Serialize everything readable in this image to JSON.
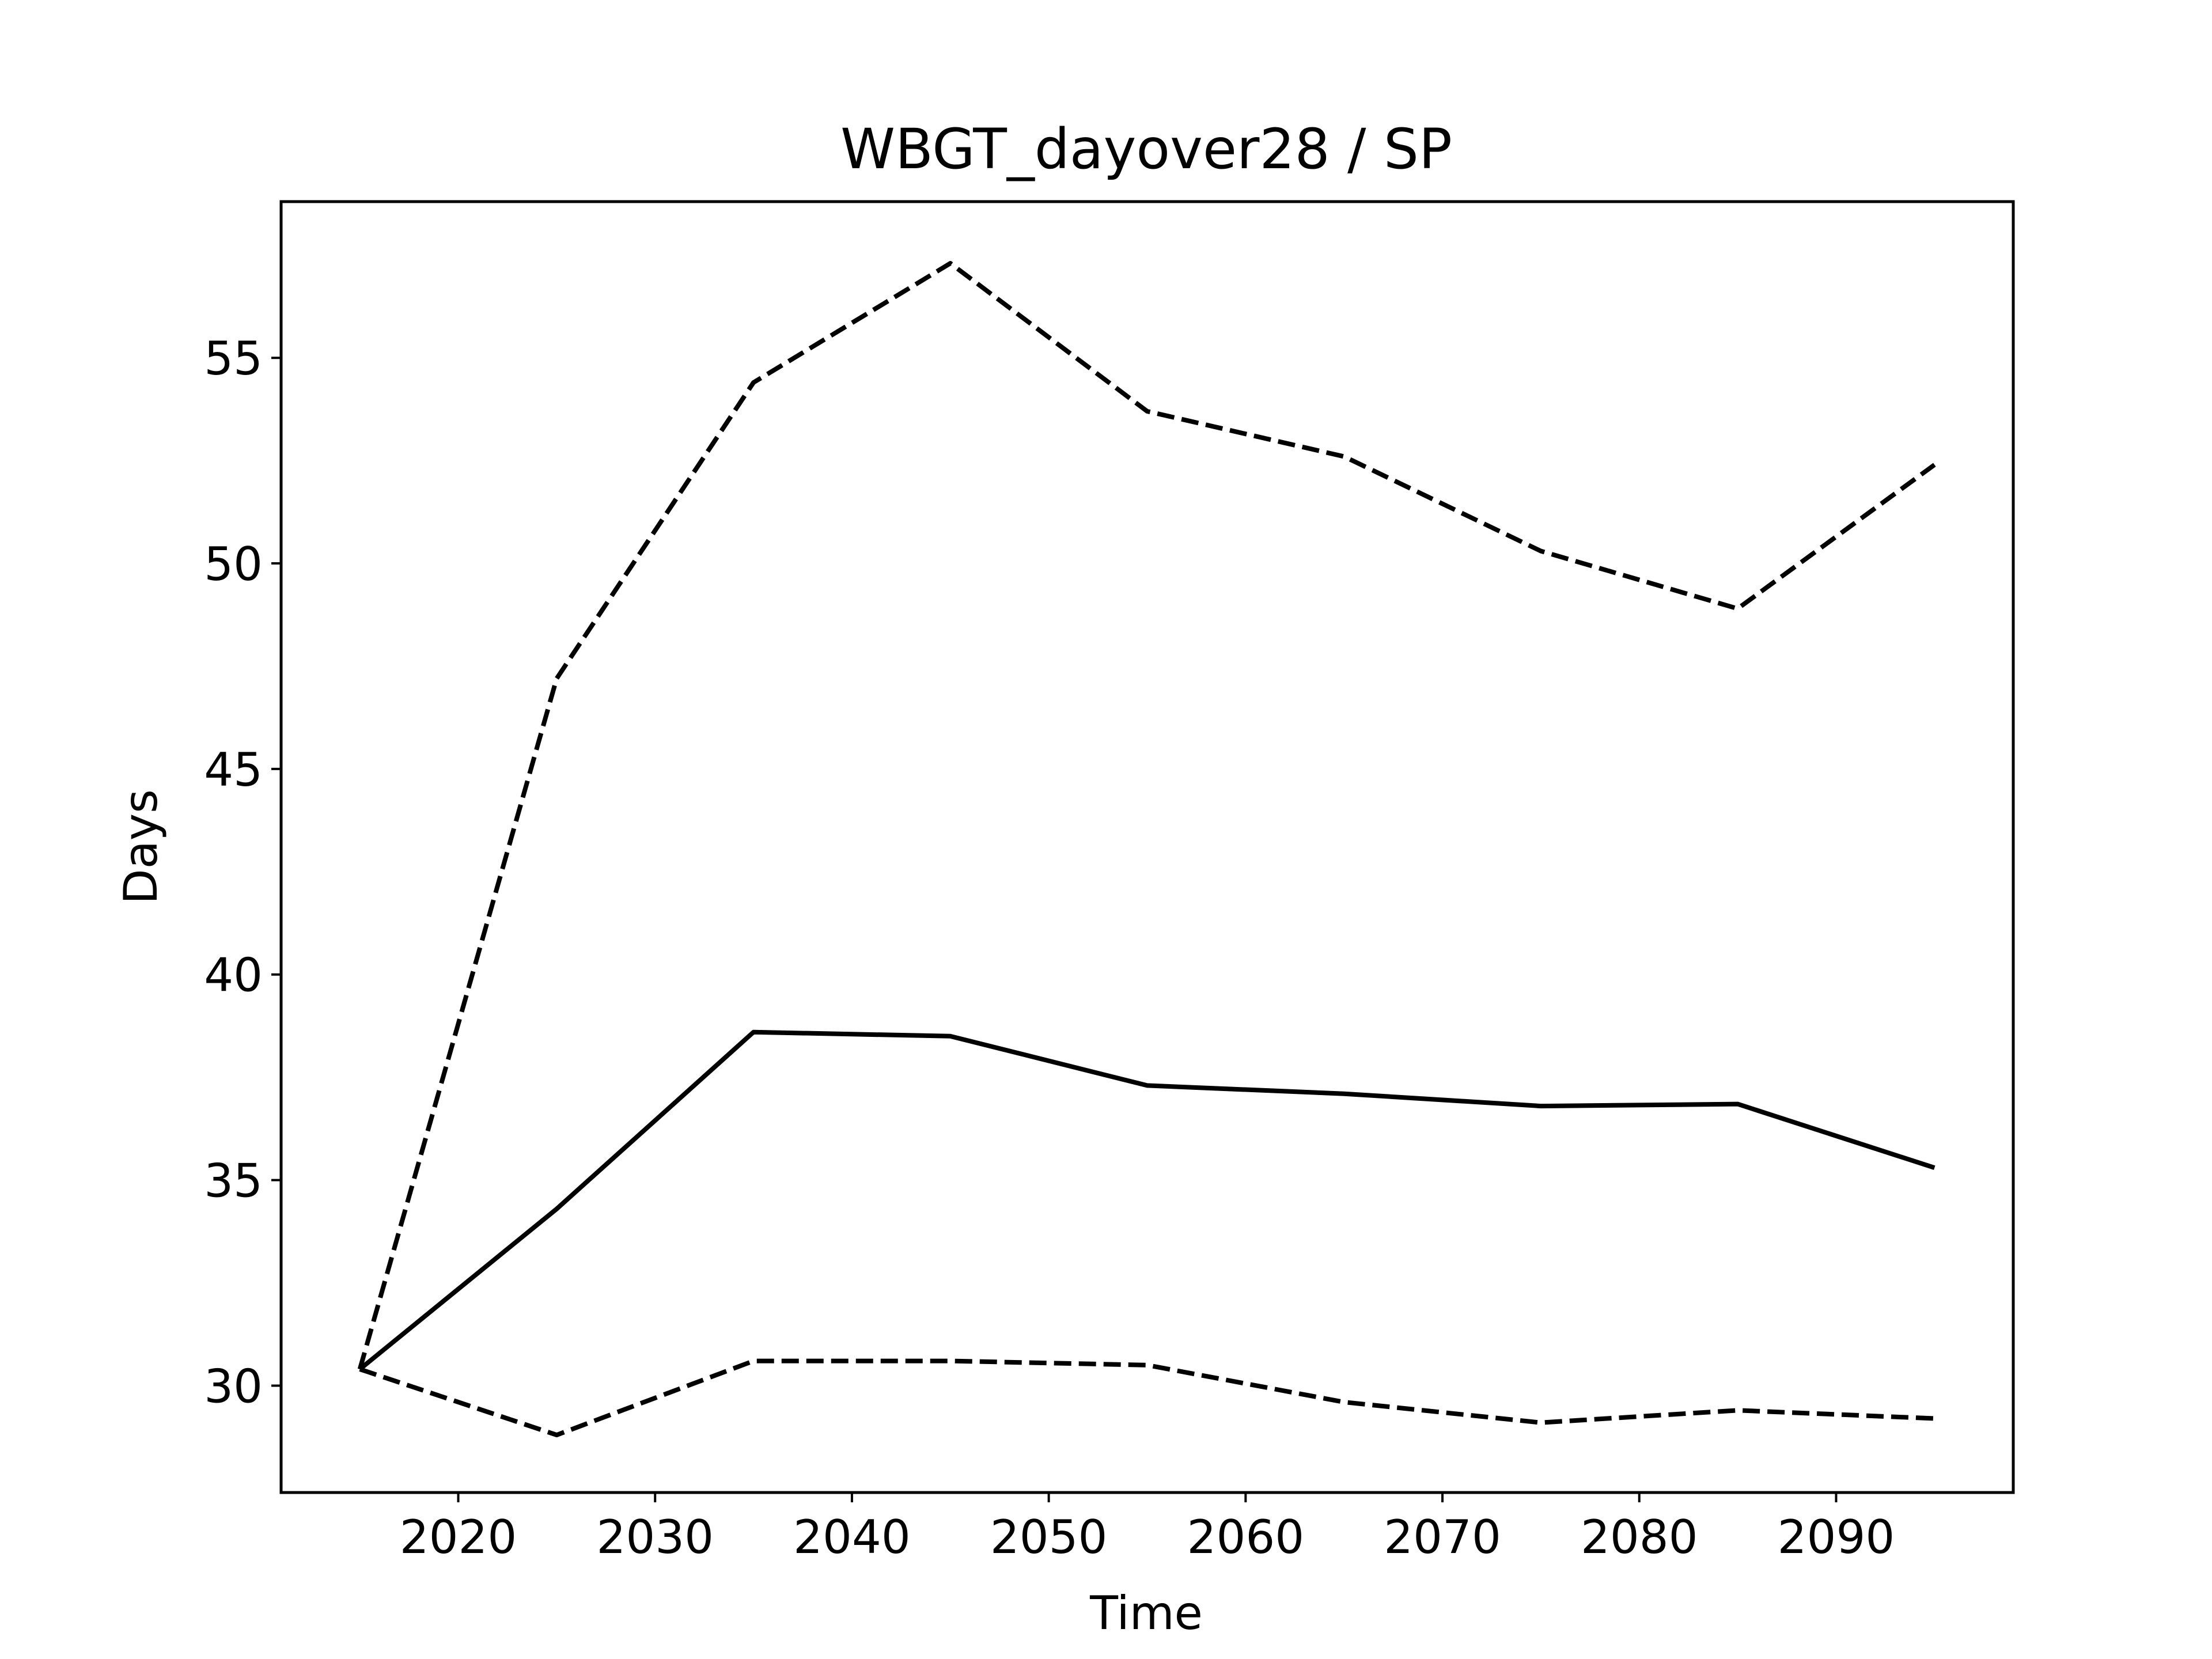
{
  "chart_data": {
    "type": "line",
    "title": "WBGT_dayover28 / SP",
    "xlabel": "Time",
    "ylabel": "Days",
    "x": [
      2015,
      2025,
      2035,
      2045,
      2055,
      2065,
      2075,
      2085,
      2095
    ],
    "xlim": [
      2011,
      2099
    ],
    "ylim": [
      27.4,
      58.8
    ],
    "x_ticks": [
      2020,
      2030,
      2040,
      2050,
      2060,
      2070,
      2080,
      2090
    ],
    "y_ticks": [
      30,
      35,
      40,
      45,
      50,
      55
    ],
    "grid": false,
    "series": [
      {
        "style": "dashed",
        "color": "#000000",
        "values": [
          30.4,
          47.2,
          54.4,
          57.3,
          53.7,
          52.6,
          50.3,
          48.9,
          52.4
        ]
      },
      {
        "style": "solid",
        "color": "#000000",
        "values": [
          30.4,
          34.3,
          38.6,
          38.5,
          37.3,
          37.1,
          36.8,
          36.85,
          35.3
        ]
      },
      {
        "style": "dashed",
        "color": "#000000",
        "values": [
          30.4,
          28.8,
          30.6,
          30.6,
          30.5,
          29.6,
          29.1,
          29.4,
          29.2
        ]
      }
    ]
  }
}
